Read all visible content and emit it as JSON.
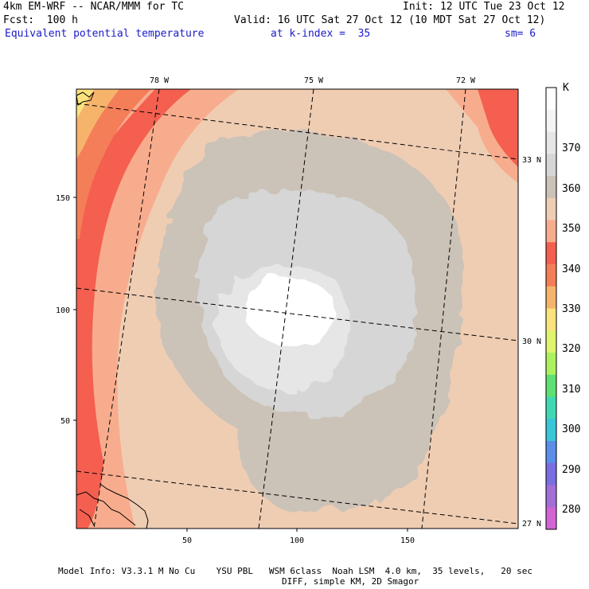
{
  "header": {
    "model": "4km EM-WRF -- NCAR/MMM for TC",
    "init": "Init: 12 UTC Tue 23 Oct 12",
    "fcst": "Fcst:  100 h",
    "valid": "Valid: 16 UTC Sat 27 Oct 12 (10 MDT Sat 27 Oct 12)",
    "field": "Equivalent potential temperature",
    "level": "at k-index =  35",
    "smooth": "sm= 6"
  },
  "map": {
    "lon_labels": [
      "78 W",
      "75 W",
      "72 W"
    ],
    "lat_labels": [
      "33 N",
      "30 N",
      "27 N"
    ],
    "x_ticks": [
      "50",
      "100",
      "150"
    ],
    "y_ticks": [
      "150",
      "100",
      "50"
    ]
  },
  "colorbar": {
    "unit": "K",
    "labels": [
      "370",
      "360",
      "350",
      "340",
      "330",
      "320",
      "310",
      "300",
      "290",
      "280"
    ],
    "colors": [
      "#ffffff",
      "#f4f4f4",
      "#e6e6e6",
      "#d6d6d6",
      "#cbc2b8",
      "#efcdb3",
      "#f8ac8e",
      "#f45f4f",
      "#f47e58",
      "#f6b46b",
      "#fae37c",
      "#e0f46e",
      "#abf25e",
      "#5ee072",
      "#3ed9b4",
      "#38c6d8",
      "#5a8ee8",
      "#7a6ee2",
      "#a36ed8",
      "#d264d6"
    ]
  },
  "footer": {
    "line1": "Model Info: V3.3.1 M No Cu    YSU PBL   WSM 6class  Noah LSM  4.0 km,  35 levels,   20 sec",
    "line2": "DIFF, simple KM, 2D Smagor"
  }
}
